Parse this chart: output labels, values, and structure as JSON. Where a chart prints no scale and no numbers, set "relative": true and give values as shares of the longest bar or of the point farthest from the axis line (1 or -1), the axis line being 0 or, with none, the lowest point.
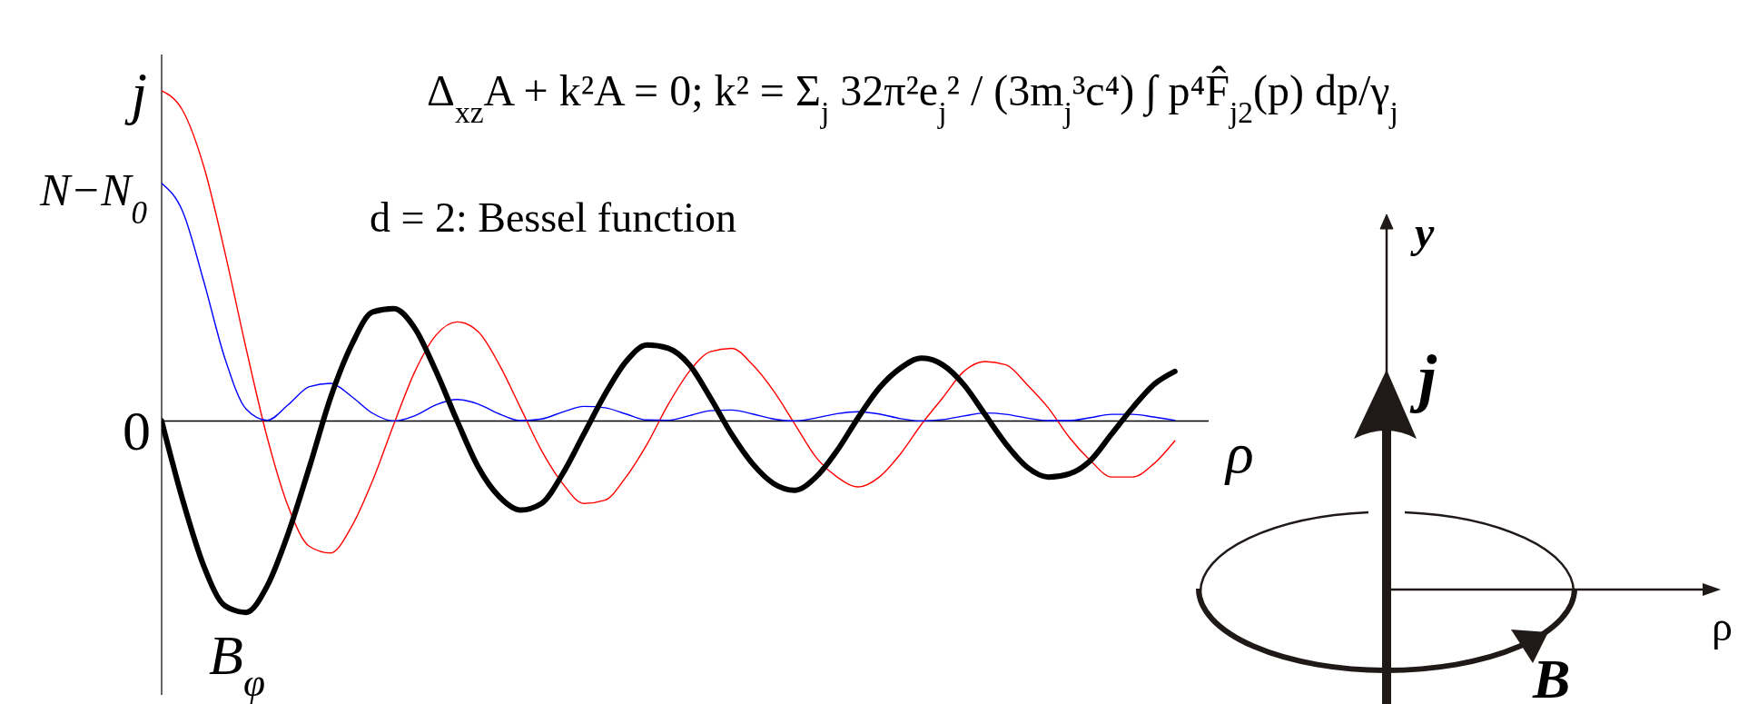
{
  "chart_data": {
    "type": "line",
    "relative": true,
    "title": "d = 2: Bessel function",
    "subtitle": "Δ$_{xz}$A + k²A = 0;   k² = Σ$_{j}$ 32π²e$_{j}$² / (3m$_{j}$³c⁴) ∫ p⁴F̂$_{j2}$(p) dp/γ$_{j}$",
    "xlabel": "ρ",
    "annotations": [
      "0",
      "y",
      "j",
      "ρ",
      "B"
    ],
    "categories": [
      null,
      null,
      null,
      null,
      null,
      null,
      null,
      null,
      null,
      null,
      null,
      null,
      null,
      null,
      null,
      null,
      null,
      null,
      null,
      null,
      null,
      null,
      null,
      null,
      null,
      null,
      null,
      null,
      null,
      null,
      null,
      null,
      null,
      null,
      null,
      null,
      null,
      null,
      null,
      null,
      null,
      null,
      null,
      null,
      null,
      null,
      null,
      null,
      null
    ],
    "series": [
      {
        "name": "j",
        "color": "#ff0000",
        "values": [
          1,
          0.94,
          0.77,
          0.51,
          0.22,
          -0.05,
          -0.26,
          -0.38,
          -0.4,
          -0.32,
          -0.18,
          -0.01,
          0.15,
          0.26,
          0.3,
          0.27,
          0.17,
          0.04,
          -0.09,
          -0.19,
          -0.25,
          -0.24,
          -0.17,
          -0.07,
          0.05,
          0.15,
          0.21,
          0.22,
          0.17,
          0.09,
          -0.01,
          -0.11,
          -0.17,
          -0.2,
          -0.17,
          -0.1,
          -0.01,
          0.07,
          0.15,
          0.18,
          0.17,
          0.11,
          0.04,
          -0.05,
          -0.12,
          -0.17,
          -0.17,
          -0.13,
          -0.06
        ]
      },
      {
        "name": "N−N$_{0}$",
        "color": "#0000ff",
        "values": [
          0.72,
          0.634,
          0.422,
          0.189,
          0.036,
          0.002,
          0.049,
          0.104,
          0.114,
          0.074,
          0.023,
          0.0,
          0.016,
          0.049,
          0.065,
          0.051,
          0.021,
          0.001,
          0.006,
          0.027,
          0.044,
          0.04,
          0.021,
          0.003,
          0.002,
          0.016,
          0.031,
          0.033,
          0.021,
          0.006,
          0.0,
          0.009,
          0.022,
          0.028,
          0.021,
          0.007,
          0.0,
          0.004,
          0.015,
          0.024,
          0.02,
          0.009,
          0.001,
          0.001,
          0.01,
          0.02,
          0.02,
          0.012,
          0.002
        ]
      },
      {
        "name": "B$_{φ}$",
        "color": "#000000",
        "values": [
          0,
          -0.24,
          -0.44,
          -0.56,
          -0.58,
          -0.5,
          -0.34,
          -0.14,
          0.07,
          0.23,
          0.33,
          0.34,
          0.28,
          0.15,
          0.0,
          -0.14,
          -0.23,
          -0.27,
          -0.25,
          -0.16,
          -0.04,
          0.08,
          0.18,
          0.23,
          0.22,
          0.17,
          0.07,
          -0.04,
          -0.13,
          -0.19,
          -0.21,
          -0.17,
          -0.09,
          0.01,
          0.1,
          0.16,
          0.19,
          0.17,
          0.11,
          0.02,
          -0.07,
          -0.14,
          -0.17,
          -0.16,
          -0.12,
          -0.04,
          0.04,
          0.11,
          0.15
        ]
      }
    ]
  }
}
